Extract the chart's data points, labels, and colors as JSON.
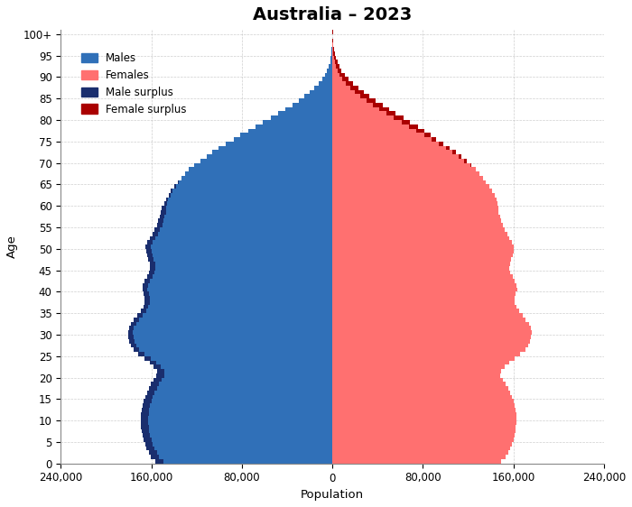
{
  "title": "Australia – 2023",
  "xlabel": "Population",
  "ylabel": "Age",
  "title_fontsize": 14,
  "title_fontweight": "bold",
  "background_color": "#ffffff",
  "grid_color": "#bbbbbb",
  "male_color": "#3070B8",
  "female_color": "#FF7070",
  "male_surplus_color": "#1a2e6e",
  "female_surplus_color": "#aa0000",
  "xlim": 240000,
  "yticks": [
    0,
    5,
    10,
    15,
    20,
    25,
    30,
    35,
    40,
    45,
    50,
    55,
    60,
    65,
    70,
    75,
    80,
    85,
    90,
    95,
    100
  ],
  "ytick_labels": [
    "0",
    "5",
    "10",
    "15",
    "20",
    "25",
    "30",
    "35",
    "40",
    "45",
    "50",
    "55",
    "60",
    "65",
    "70",
    "75",
    "80",
    "85",
    "90",
    "95",
    "100+"
  ],
  "ages": [
    0,
    1,
    2,
    3,
    4,
    5,
    6,
    7,
    8,
    9,
    10,
    11,
    12,
    13,
    14,
    15,
    16,
    17,
    18,
    19,
    20,
    21,
    22,
    23,
    24,
    25,
    26,
    27,
    28,
    29,
    30,
    31,
    32,
    33,
    34,
    35,
    36,
    37,
    38,
    39,
    40,
    41,
    42,
    43,
    44,
    45,
    46,
    47,
    48,
    49,
    50,
    51,
    52,
    53,
    54,
    55,
    56,
    57,
    58,
    59,
    60,
    61,
    62,
    63,
    64,
    65,
    66,
    67,
    68,
    69,
    70,
    71,
    72,
    73,
    74,
    75,
    76,
    77,
    78,
    79,
    80,
    81,
    82,
    83,
    84,
    85,
    86,
    87,
    88,
    89,
    90,
    91,
    92,
    93,
    94,
    95,
    96,
    97,
    98,
    99,
    100
  ],
  "males": [
    156700,
    160500,
    162300,
    164100,
    165600,
    166800,
    167700,
    168400,
    168900,
    169200,
    169300,
    169100,
    168600,
    167800,
    166700,
    165400,
    163900,
    162100,
    160100,
    157900,
    155500,
    155000,
    157800,
    161500,
    166200,
    171500,
    175800,
    178200,
    179500,
    180200,
    180800,
    180000,
    178200,
    175600,
    172700,
    169500,
    167200,
    166000,
    165800,
    166600,
    168000,
    167400,
    165800,
    163900,
    162000,
    161000,
    161500,
    162600,
    163800,
    164700,
    164900,
    163300,
    161300,
    159200,
    157100,
    155200,
    154000,
    152900,
    151800,
    150800,
    148900,
    147000,
    144900,
    142700,
    140000,
    136900,
    133700,
    130500,
    126700,
    121900,
    116600,
    111300,
    106100,
    100300,
    94200,
    87400,
    81200,
    74400,
    67900,
    61200,
    54400,
    47600,
    41400,
    35600,
    29900,
    24700,
    19900,
    15900,
    12000,
    8900,
    6400,
    4600,
    3200,
    2100,
    1400,
    880,
    540,
    320,
    180,
    95,
    150
  ],
  "females": [
    149200,
    153000,
    155100,
    157100,
    158600,
    159900,
    160900,
    161700,
    162200,
    162500,
    162600,
    162400,
    161900,
    161100,
    160000,
    158600,
    157000,
    155100,
    153000,
    150700,
    148200,
    148900,
    151900,
    155900,
    160800,
    166200,
    170600,
    173100,
    174500,
    175400,
    176100,
    175300,
    173500,
    170900,
    168000,
    164800,
    162500,
    161300,
    161100,
    161900,
    163300,
    162700,
    161100,
    159200,
    157300,
    156300,
    156800,
    157900,
    159100,
    160000,
    160200,
    158600,
    156600,
    154500,
    152400,
    150500,
    149300,
    148200,
    147100,
    147100,
    146200,
    145300,
    143200,
    141000,
    138500,
    135500,
    133300,
    130100,
    127000,
    122900,
    118800,
    113800,
    109000,
    103700,
    98100,
    92000,
    86800,
    81000,
    75300,
    68800,
    62600,
    56100,
    50100,
    44300,
    38000,
    32600,
    27500,
    22900,
    18300,
    14600,
    11000,
    8200,
    6000,
    4300,
    3000,
    1950,
    1260,
    790,
    470,
    265,
    380
  ],
  "xtick_vals": [
    -240000,
    -160000,
    -80000,
    0,
    80000,
    160000,
    240000
  ],
  "xtick_labels": [
    "240,000",
    "160,000",
    "80,000",
    "0",
    "80,000",
    "160,000",
    "240,000"
  ]
}
